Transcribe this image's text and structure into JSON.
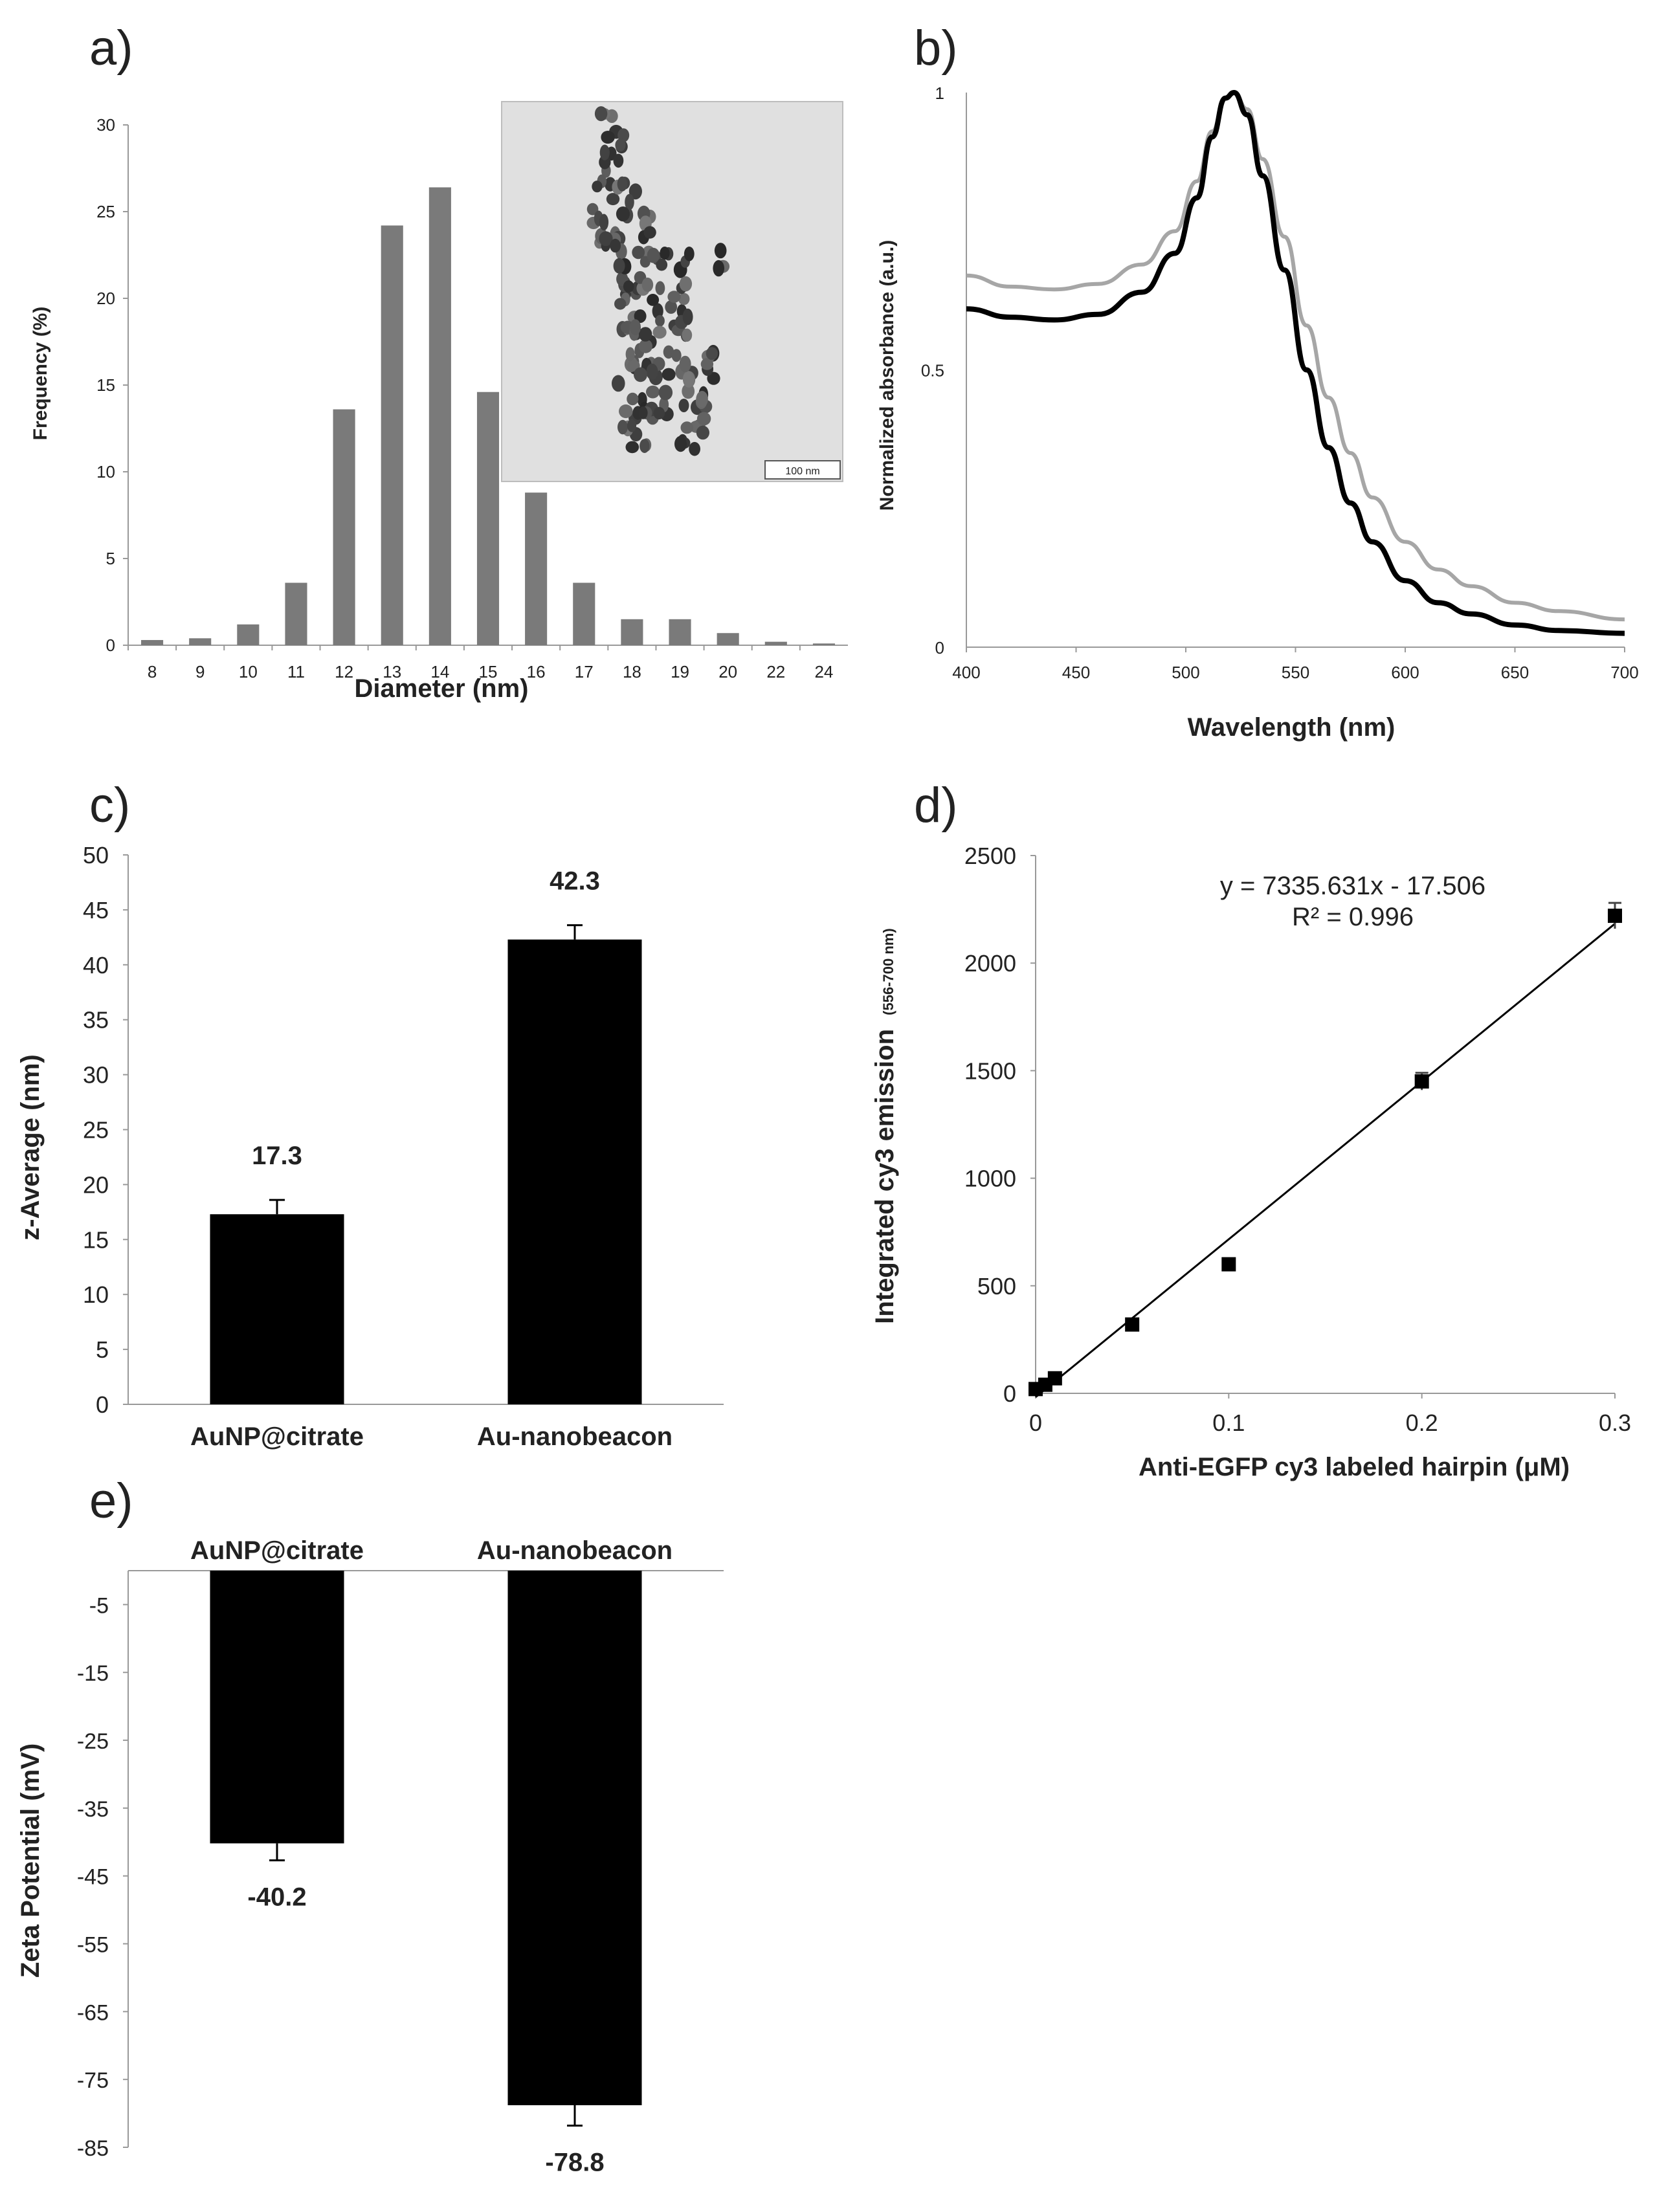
{
  "panels": {
    "a": "a)",
    "b": "b)",
    "c": "c)",
    "d": "d)",
    "e": "e)"
  },
  "chart_data": [
    {
      "id": "a",
      "type": "bar",
      "categories": [
        "8",
        "9",
        "10",
        "11",
        "12",
        "13",
        "14",
        "15",
        "16",
        "17",
        "18",
        "19",
        "20",
        "22",
        "24"
      ],
      "values": [
        0.3,
        0.4,
        1.2,
        3.6,
        13.6,
        24.2,
        26.4,
        14.6,
        8.8,
        3.6,
        1.5,
        1.5,
        0.7,
        0.2,
        0.1
      ],
      "color": "#7a7a7a",
      "title": "",
      "xlabel": "Diameter (nm)",
      "ylabel": "Frequency (%)",
      "ylim": [
        0,
        30
      ],
      "yticks": [
        "0",
        "5",
        "10",
        "15",
        "20",
        "25",
        "30"
      ],
      "inset": {
        "scale_label": "100 nm"
      }
    },
    {
      "id": "b",
      "type": "line",
      "xlabel": "Wavelength (nm)",
      "ylabel": "Normalized absorbance (a.u.)",
      "xlim": [
        400,
        700
      ],
      "ylim": [
        0,
        1
      ],
      "xticks": [
        "400",
        "450",
        "500",
        "550",
        "600",
        "650",
        "700"
      ],
      "yticks": [
        "0",
        "0.5",
        "1"
      ],
      "series": [
        {
          "name": "gray",
          "color": "#a6a6a6",
          "x": [
            400,
            420,
            440,
            460,
            480,
            495,
            505,
            512,
            518,
            522,
            528,
            535,
            545,
            555,
            565,
            575,
            585,
            600,
            615,
            630,
            650,
            670,
            700
          ],
          "y": [
            0.67,
            0.65,
            0.645,
            0.655,
            0.69,
            0.75,
            0.84,
            0.93,
            0.99,
            1.0,
            0.97,
            0.88,
            0.74,
            0.58,
            0.45,
            0.35,
            0.27,
            0.19,
            0.14,
            0.11,
            0.08,
            0.065,
            0.05
          ]
        },
        {
          "name": "black",
          "color": "#000000",
          "x": [
            400,
            420,
            440,
            460,
            480,
            495,
            505,
            512,
            518,
            522,
            528,
            535,
            545,
            555,
            565,
            575,
            585,
            600,
            615,
            630,
            650,
            670,
            700
          ],
          "y": [
            0.61,
            0.595,
            0.59,
            0.6,
            0.64,
            0.71,
            0.81,
            0.92,
            0.99,
            1.0,
            0.96,
            0.85,
            0.68,
            0.5,
            0.36,
            0.26,
            0.19,
            0.12,
            0.08,
            0.06,
            0.04,
            0.03,
            0.025
          ]
        }
      ]
    },
    {
      "id": "c",
      "type": "bar",
      "categories": [
        "AuNP@citrate",
        "Au-nanobeacon"
      ],
      "values": [
        17.3,
        42.3
      ],
      "errors": [
        1.3,
        1.3
      ],
      "value_labels": [
        "17.3",
        "42.3"
      ],
      "ylabel": "z-Average (nm)",
      "ylim": [
        0,
        50
      ],
      "yticks": [
        "0",
        "5",
        "10",
        "15",
        "20",
        "25",
        "30",
        "35",
        "40",
        "45",
        "50"
      ]
    },
    {
      "id": "d",
      "type": "scatter",
      "x": [
        0,
        0.005,
        0.01,
        0.05,
        0.1,
        0.2,
        0.3
      ],
      "y": [
        20,
        40,
        70,
        320,
        600,
        1450,
        2220
      ],
      "errors": [
        25,
        25,
        25,
        25,
        20,
        40,
        60
      ],
      "fit": {
        "slope": 7335.631,
        "intercept": -17.506
      },
      "equation": "y = 7335.631x - 17.506",
      "r2": "R² = 0.996",
      "xlabel": "Anti-EGFP  cy3 labeled hairpin (μM)",
      "ylabel": "Integrated cy3 emission",
      "ylabel_sub": "(556-700 nm)",
      "xlim": [
        0,
        0.3
      ],
      "ylim": [
        0,
        2500
      ],
      "xticks": [
        "0",
        "0.1",
        "0.2",
        "0.3"
      ],
      "yticks": [
        "0",
        "500",
        "1000",
        "1500",
        "2000",
        "2500"
      ]
    },
    {
      "id": "e",
      "type": "bar",
      "categories": [
        "AuNP@citrate",
        "Au-nanobeacon"
      ],
      "values": [
        -40.2,
        -78.8
      ],
      "errors": [
        2.5,
        3.0
      ],
      "value_labels": [
        "-40.2",
        "-78.8"
      ],
      "ylabel": "Zeta Potential (mV)",
      "ylim": [
        -85,
        0
      ],
      "yticks": [
        "-5",
        "-15",
        "-25",
        "-35",
        "-45",
        "-55",
        "-65",
        "-75",
        "-85"
      ]
    }
  ]
}
